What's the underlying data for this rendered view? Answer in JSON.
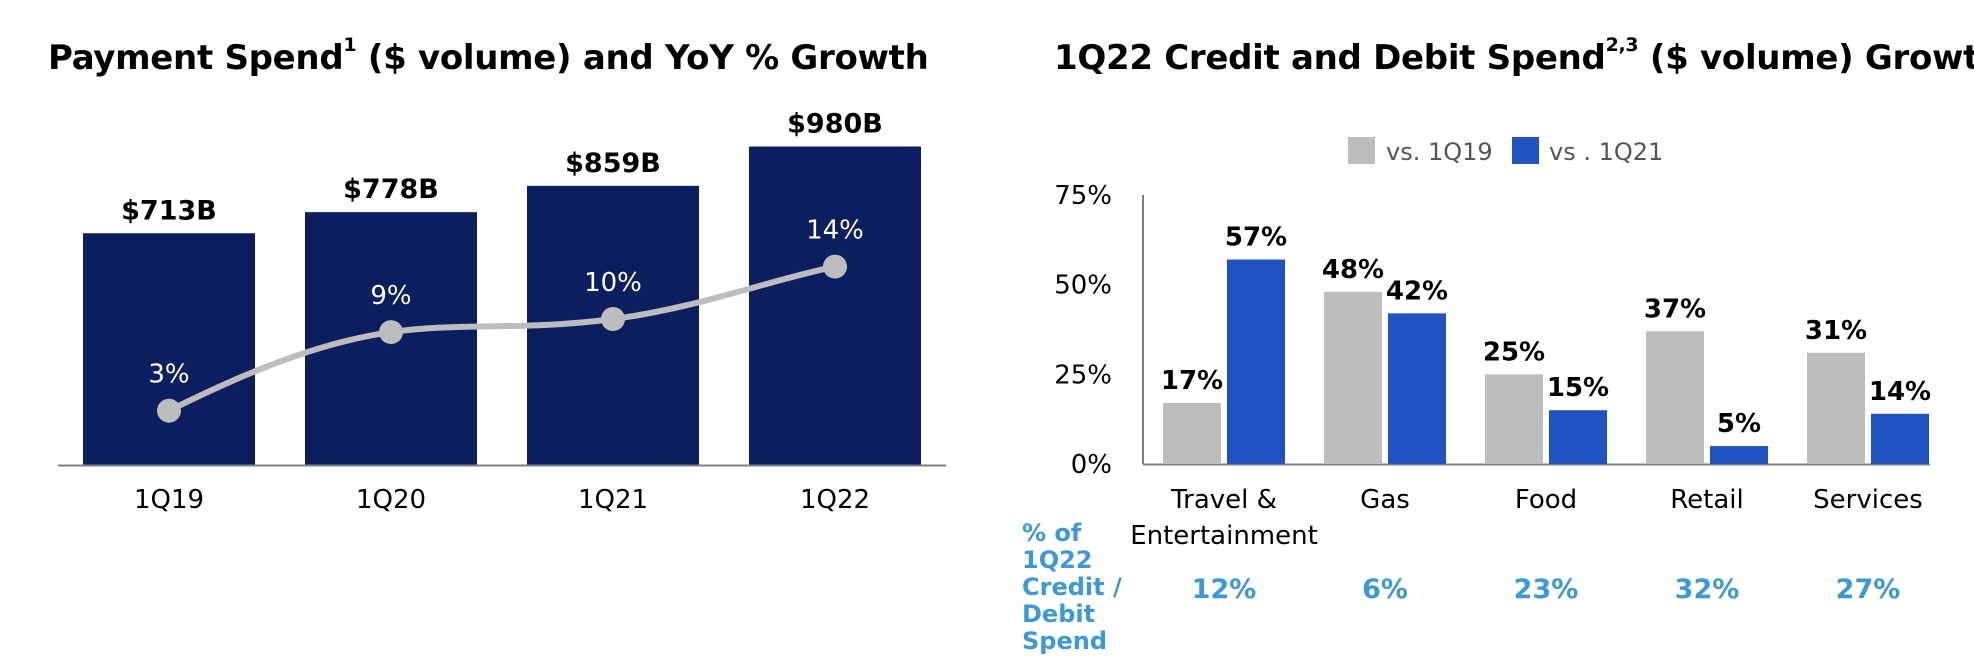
{
  "left": {
    "title": "Payment Spend",
    "title_sup": "1",
    "title_rest": " ($ volume) and YoY % Growth"
  },
  "right": {
    "title": "1Q22 Credit and Debit Spend",
    "title_sup": "2,3",
    "title_rest": " ($ volume) Growth",
    "share_row_label": "% of 1Q22 Credit / Debit Spend"
  },
  "colors": {
    "navy": "#0b1f60",
    "gray_bar": "#bdbdbd",
    "blue_bar": "#2052c4",
    "line": "#bdbdbd",
    "share_text": "#3a9ad9"
  },
  "chart_data": [
    {
      "type": "bar",
      "categories": [
        "1Q19",
        "1Q20",
        "1Q21",
        "1Q22"
      ],
      "series": [
        {
          "values": [
            713,
            778,
            859,
            980
          ],
          "labels": [
            "$713B",
            "$778B",
            "$859B",
            "$980B"
          ]
        }
      ],
      "line_series": {
        "values": [
          3,
          9,
          10,
          14
        ],
        "labels": [
          "3%",
          "9%",
          "10%",
          "14%"
        ]
      },
      "title": "Payment Spend",
      "xlabel": "",
      "ylabel": ""
    },
    {
      "type": "bar",
      "categories": [
        "Travel & Entertainment",
        "Gas",
        "Food",
        "Retail",
        "Services"
      ],
      "category_lines": [
        [
          "Travel &",
          "Entertainment"
        ],
        [
          "Gas"
        ],
        [
          "Food"
        ],
        [
          "Retail"
        ],
        [
          "Services"
        ]
      ],
      "series": [
        {
          "name": "vs. 1Q19",
          "values": [
            17,
            48,
            25,
            37,
            31
          ],
          "labels": [
            "17%",
            "48%",
            "25%",
            "37%",
            "31%"
          ]
        },
        {
          "name": "vs . 1Q21",
          "values": [
            57,
            42,
            15,
            5,
            14
          ],
          "labels": [
            "57%",
            "42%",
            "15%",
            "5%",
            "14%"
          ]
        }
      ],
      "yticks": [
        "0%",
        "25%",
        "50%",
        "75%"
      ],
      "ylim": [
        0,
        75
      ],
      "legend": "top-center",
      "share_of_spend": [
        "12%",
        "6%",
        "23%",
        "32%",
        "27%"
      ],
      "title": "1Q22 Credit and Debit Spend",
      "xlabel": "",
      "ylabel": ""
    }
  ]
}
